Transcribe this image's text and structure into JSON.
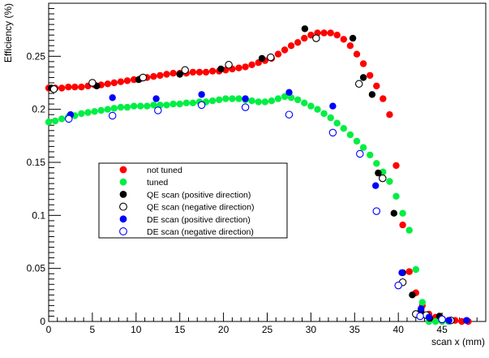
{
  "chart_data": {
    "type": "scatter",
    "xlabel": "scan x (mm)",
    "ylabel": "Efficiency (%)",
    "xlim": [
      0,
      50
    ],
    "ylim": [
      0,
      0.3
    ],
    "grid": false,
    "legend_position": "center-left",
    "x_ticks": [
      0,
      5,
      10,
      15,
      20,
      25,
      30,
      35,
      40,
      45
    ],
    "x_tick_labels": [
      "0",
      "5",
      "10",
      "15",
      "20",
      "25",
      "30",
      "35",
      "40",
      "45"
    ],
    "y_ticks": [
      0,
      0.05,
      0.1,
      0.15,
      0.2,
      0.25
    ],
    "y_tick_labels": [
      "0",
      "0.05",
      "0.1",
      "0.15",
      "0.2",
      "0.25"
    ],
    "series": [
      {
        "name": "not tuned",
        "marker": "filled-circle",
        "color": "#ff0000",
        "x": [
          0.0,
          0.75,
          1.5,
          2.25,
          3.0,
          3.75,
          4.5,
          5.25,
          6.0,
          6.75,
          7.5,
          8.25,
          9.0,
          9.75,
          10.5,
          11.25,
          12.0,
          12.75,
          13.5,
          14.25,
          15.0,
          15.75,
          16.5,
          17.25,
          18.0,
          18.75,
          19.5,
          20.25,
          21.0,
          21.75,
          22.5,
          23.25,
          24.0,
          24.75,
          25.5,
          26.25,
          27.0,
          27.75,
          28.5,
          29.25,
          30.0,
          30.75,
          31.5,
          32.25,
          33.0,
          33.75,
          34.5,
          35.25,
          36.0,
          36.75,
          37.5,
          38.25,
          39.0,
          39.75,
          40.5,
          41.25,
          42.0,
          42.75,
          43.5,
          44.25,
          45.0,
          45.75,
          46.5,
          47.25,
          48.0
        ],
        "y": [
          0.22,
          0.22,
          0.22,
          0.221,
          0.221,
          0.221,
          0.222,
          0.223,
          0.223,
          0.224,
          0.225,
          0.226,
          0.227,
          0.228,
          0.229,
          0.23,
          0.231,
          0.232,
          0.233,
          0.234,
          0.234,
          0.234,
          0.235,
          0.235,
          0.235,
          0.236,
          0.236,
          0.237,
          0.238,
          0.239,
          0.24,
          0.242,
          0.244,
          0.246,
          0.248,
          0.252,
          0.256,
          0.26,
          0.263,
          0.267,
          0.27,
          0.272,
          0.272,
          0.272,
          0.27,
          0.266,
          0.26,
          0.252,
          0.243,
          0.232,
          0.222,
          0.21,
          0.195,
          0.147,
          0.091,
          0.047,
          0.027,
          0.015,
          0.007,
          0.004,
          0.002,
          0.001,
          0.001,
          0.0,
          0.0
        ]
      },
      {
        "name": "tuned",
        "marker": "filled-circle",
        "color": "#00ee44",
        "x": [
          0.0,
          0.75,
          1.5,
          2.25,
          3.0,
          3.75,
          4.5,
          5.25,
          6.0,
          6.75,
          7.5,
          8.25,
          9.0,
          9.75,
          10.5,
          11.25,
          12.0,
          12.75,
          13.5,
          14.25,
          15.0,
          15.75,
          16.5,
          17.25,
          18.0,
          18.75,
          19.5,
          20.25,
          21.0,
          21.75,
          22.5,
          23.25,
          24.0,
          24.75,
          25.5,
          26.25,
          27.0,
          27.75,
          28.5,
          29.25,
          30.0,
          30.75,
          31.5,
          32.25,
          33.0,
          33.75,
          34.5,
          35.25,
          36.0,
          36.75,
          37.5,
          38.25,
          39.0,
          39.75,
          40.5,
          41.25,
          42.0,
          42.75,
          43.5,
          44.25,
          45.0,
          45.75
        ],
        "y": [
          0.188,
          0.189,
          0.191,
          0.193,
          0.194,
          0.196,
          0.197,
          0.198,
          0.199,
          0.2,
          0.201,
          0.202,
          0.202,
          0.203,
          0.203,
          0.203,
          0.204,
          0.204,
          0.204,
          0.205,
          0.205,
          0.206,
          0.206,
          0.207,
          0.207,
          0.208,
          0.209,
          0.21,
          0.21,
          0.21,
          0.209,
          0.208,
          0.207,
          0.207,
          0.208,
          0.21,
          0.212,
          0.211,
          0.209,
          0.206,
          0.203,
          0.2,
          0.196,
          0.192,
          0.187,
          0.182,
          0.176,
          0.17,
          0.164,
          0.157,
          0.149,
          0.141,
          0.132,
          0.118,
          0.102,
          0.086,
          0.049,
          0.018,
          0.0,
          0.0,
          0.0,
          0.0
        ]
      },
      {
        "name": "QE scan (positive direction)",
        "marker": "filled-circle",
        "color": "#000000",
        "x": [
          0.3,
          5.5,
          10.3,
          15.0,
          19.7,
          24.4,
          29.3,
          34.8,
          36.0,
          37.0,
          37.7,
          39.5,
          40.5,
          41.6,
          42.6,
          43.6,
          44.7,
          45.8
        ],
        "y": [
          0.22,
          0.222,
          0.228,
          0.233,
          0.238,
          0.248,
          0.276,
          0.267,
          0.23,
          0.214,
          0.14,
          0.102,
          0.046,
          0.025,
          0.01,
          0.003,
          0.005,
          0.001
        ]
      },
      {
        "name": "QE scan (negative direction)",
        "marker": "open-circle",
        "color": "#000000",
        "x": [
          0.6,
          5.0,
          10.8,
          15.6,
          20.6,
          25.4,
          30.6,
          35.5,
          38.2,
          40.5,
          42.0,
          43.2,
          45.0,
          46.0
        ],
        "y": [
          0.219,
          0.225,
          0.23,
          0.237,
          0.242,
          0.249,
          0.267,
          0.224,
          0.135,
          0.037,
          0.007,
          0.006,
          0.002,
          0.001
        ]
      },
      {
        "name": "DE scan (positive direction)",
        "marker": "filled-circle",
        "color": "#0000ff",
        "x": [
          2.5,
          7.3,
          12.3,
          17.5,
          22.5,
          27.5,
          32.5,
          37.4,
          40.4,
          42.6,
          43.5,
          45.8,
          47.8
        ],
        "y": [
          0.195,
          0.211,
          0.21,
          0.214,
          0.21,
          0.216,
          0.203,
          0.128,
          0.046,
          0.012,
          0.004,
          0.001,
          0.001
        ]
      },
      {
        "name": "DE scan (negative direction)",
        "marker": "open-circle",
        "color": "#0000ff",
        "x": [
          2.3,
          7.3,
          12.5,
          17.5,
          22.5,
          27.5,
          32.5,
          35.6,
          37.5,
          40.0,
          42.5,
          45.0
        ],
        "y": [
          0.191,
          0.194,
          0.199,
          0.204,
          0.202,
          0.195,
          0.178,
          0.158,
          0.104,
          0.034,
          0.005,
          0.002
        ]
      }
    ]
  }
}
